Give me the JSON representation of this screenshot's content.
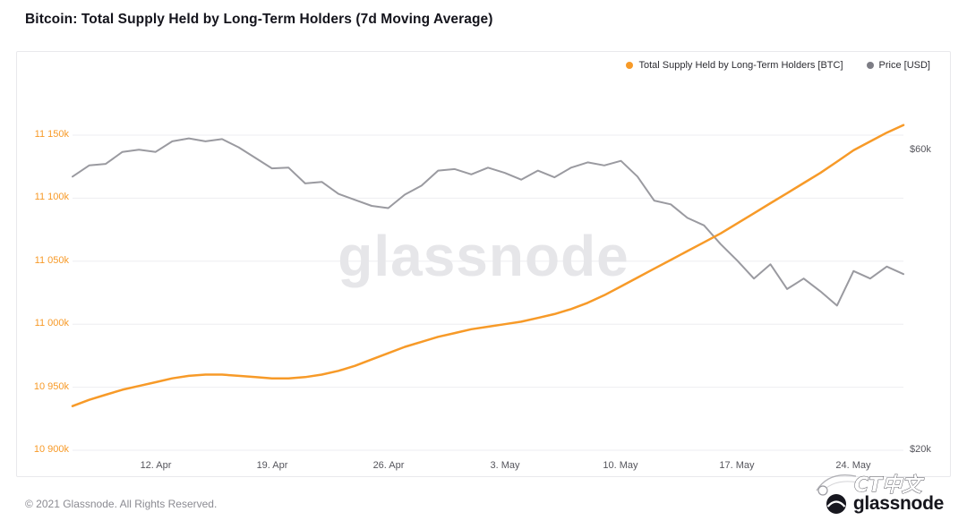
{
  "page": {
    "title": "Bitcoin: Total Supply Held by Long-Term Holders (7d Moving Average)",
    "footer": "© 2021 Glassnode. All Rights Reserved.",
    "watermark": "glassnode",
    "logo_text": "glassnode",
    "stamp_text": "CT中文"
  },
  "legend": {
    "items": [
      {
        "label": "Total Supply Held by Long-Term Holders [BTC]",
        "color": "#f79a28"
      },
      {
        "label": "Price [USD]",
        "color": "#7d7d85"
      }
    ]
  },
  "axis": {
    "left_labels": [
      "11 150k",
      "11 100k",
      "11 050k",
      "11 000k",
      "10 950k",
      "10 900k"
    ],
    "right_labels": [
      "$60k",
      "$20k"
    ],
    "x_labels": [
      "12. Apr",
      "19. Apr",
      "26. Apr",
      "3. May",
      "10. May",
      "17. May",
      "24. May"
    ]
  },
  "chart_data": {
    "type": "line",
    "title": "Bitcoin: Total Supply Held by Long-Term Holders (7d Moving Average)",
    "grid": "horizontal",
    "legend_position": "top-right",
    "x_dates": [
      "2021-04-07",
      "2021-04-08",
      "2021-04-09",
      "2021-04-10",
      "2021-04-11",
      "2021-04-12",
      "2021-04-13",
      "2021-04-14",
      "2021-04-15",
      "2021-04-16",
      "2021-04-17",
      "2021-04-18",
      "2021-04-19",
      "2021-04-20",
      "2021-04-21",
      "2021-04-22",
      "2021-04-23",
      "2021-04-24",
      "2021-04-25",
      "2021-04-26",
      "2021-04-27",
      "2021-04-28",
      "2021-04-29",
      "2021-04-30",
      "2021-05-01",
      "2021-05-02",
      "2021-05-03",
      "2021-05-04",
      "2021-05-05",
      "2021-05-06",
      "2021-05-07",
      "2021-05-08",
      "2021-05-09",
      "2021-05-10",
      "2021-05-11",
      "2021-05-12",
      "2021-05-13",
      "2021-05-14",
      "2021-05-15",
      "2021-05-16",
      "2021-05-17",
      "2021-05-18",
      "2021-05-19",
      "2021-05-20",
      "2021-05-21",
      "2021-05-22",
      "2021-05-23",
      "2021-05-24",
      "2021-05-25",
      "2021-05-26",
      "2021-05-27"
    ],
    "x_tick_labels": [
      "12. Apr",
      "19. Apr",
      "26. Apr",
      "3. May",
      "10. May",
      "17. May",
      "24. May"
    ],
    "x_tick_indices": [
      5,
      12,
      19,
      26,
      33,
      40,
      47
    ],
    "left_axis": {
      "label": "Total Supply Held by Long-Term Holders",
      "unit": "thousand BTC",
      "ticks": [
        11150,
        11100,
        11050,
        11000,
        10950,
        10900
      ],
      "range": [
        10900,
        11150
      ]
    },
    "right_axis": {
      "label": "Price",
      "unit": "thousand USD",
      "ticks": [
        60,
        20
      ],
      "range": [
        20,
        60
      ]
    },
    "series": [
      {
        "name": "Total Supply Held by Long-Term Holders [BTC]",
        "axis": "left",
        "unit": "thousand BTC",
        "color": "#f79a28",
        "values": [
          10935,
          10940,
          10944,
          10948,
          10951,
          10954,
          10957,
          10959,
          10960,
          10960,
          10959,
          10958,
          10957,
          10957,
          10958,
          10960,
          10963,
          10967,
          10972,
          10977,
          10982,
          10986,
          10990,
          10993,
          10996,
          10998,
          11000,
          11002,
          11005,
          11008,
          11012,
          11017,
          11023,
          11030,
          11037,
          11044,
          11051,
          11058,
          11065,
          11072,
          11080,
          11088,
          11096,
          11104,
          11112,
          11120,
          11129,
          11138,
          11145,
          11152,
          11158
        ]
      },
      {
        "name": "Price [USD]",
        "axis": "right",
        "unit": "thousand USD",
        "color": "#9a9aa0",
        "values": [
          56.5,
          58.0,
          58.2,
          59.8,
          60.1,
          59.8,
          61.2,
          61.6,
          61.2,
          61.5,
          60.4,
          59.0,
          57.6,
          57.7,
          55.6,
          55.8,
          54.2,
          53.4,
          52.6,
          52.3,
          54.1,
          55.3,
          57.3,
          57.5,
          56.8,
          57.7,
          57.0,
          56.1,
          57.3,
          56.4,
          57.7,
          58.4,
          58.0,
          58.6,
          56.5,
          53.3,
          52.8,
          51.0,
          50.0,
          47.5,
          45.3,
          42.9,
          44.8,
          41.5,
          42.9,
          41.2,
          39.3,
          43.9,
          42.9,
          44.5,
          43.5
        ]
      }
    ]
  }
}
